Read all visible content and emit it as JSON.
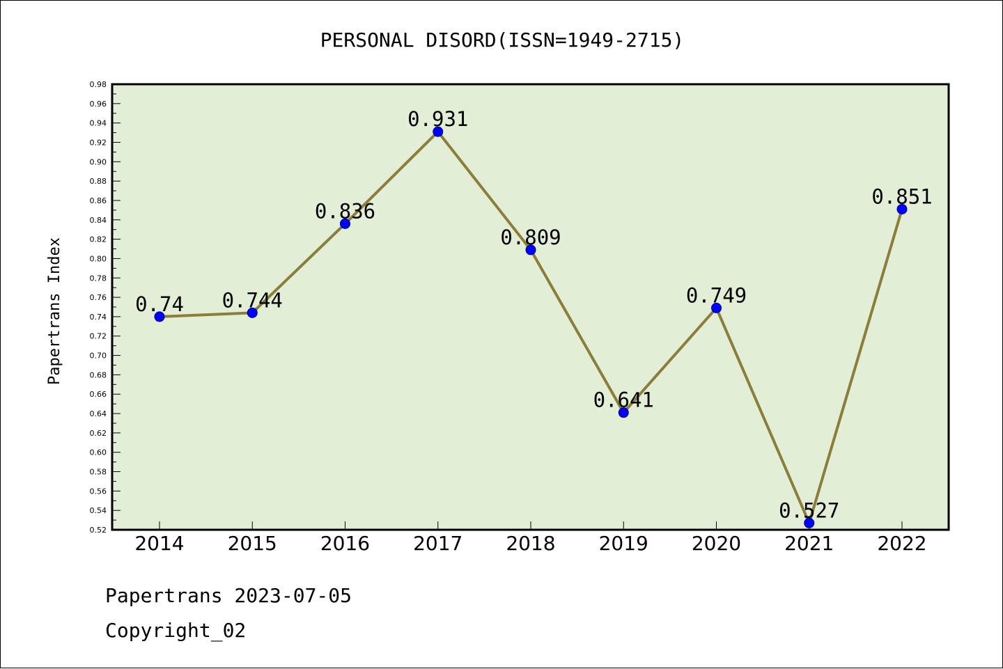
{
  "chart_data": {
    "type": "line",
    "title": "PERSONAL DISORD(ISSN=1949-2715)",
    "xlabel": "",
    "ylabel": "Papertrans Index",
    "categories": [
      "2014",
      "2015",
      "2016",
      "2017",
      "2018",
      "2019",
      "2020",
      "2021",
      "2022"
    ],
    "series": [
      {
        "values": [
          0.74,
          0.744,
          0.836,
          0.931,
          0.809,
          0.641,
          0.749,
          0.527,
          0.851
        ],
        "data_labels": [
          "0.74",
          "0.744",
          "0.836",
          "0.931",
          "0.809",
          "0.641",
          "0.749",
          "0.527",
          "0.851"
        ]
      }
    ],
    "ylim": [
      0.52,
      0.98
    ],
    "yticks": [
      "0.52",
      "0.54",
      "0.56",
      "0.58",
      "0.60",
      "0.62",
      "0.64",
      "0.66",
      "0.68",
      "0.70",
      "0.72",
      "0.74",
      "0.76",
      "0.78",
      "0.80",
      "0.82",
      "0.84",
      "0.86",
      "0.88",
      "0.90",
      "0.92",
      "0.94",
      "0.96",
      "0.98"
    ],
    "grid": false,
    "colors": {
      "plot_background": "#e2efd6",
      "line": "#8b7d3a",
      "marker_fill": "#0000ff",
      "marker_stroke": "#000080"
    }
  },
  "footer": {
    "line1": "Papertrans 2023-07-05",
    "line2": "Copyright_02"
  }
}
